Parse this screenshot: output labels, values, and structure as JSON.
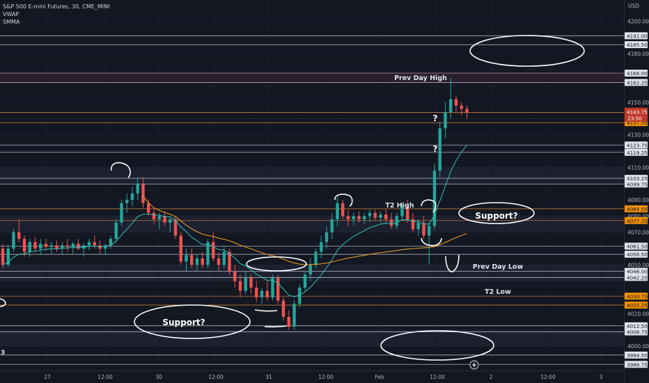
{
  "header": {
    "symbol_line": "S&P 500 E-mini Futures, 30, CME_MINI",
    "indicators": [
      "VWAP",
      "SMMA"
    ]
  },
  "colors": {
    "background": "#131722",
    "bull": "#26a69a",
    "bear": "#ef5350",
    "grid": "#1e2230",
    "band": "#1c2030",
    "level_white": "#c8ccd6",
    "level_orange": "#d9883a",
    "level_pink": "#e6a0c8",
    "vwap": "#f5a623",
    "smma": "#2ec4b6",
    "price_tag": "#c0392b",
    "orange_tag": "#f29100",
    "grey_tag": "#e0e3eb",
    "annotation": "#ffffff",
    "axis_text": "#b2b5be"
  },
  "chart_data": {
    "type": "candlestick",
    "currency": "USD",
    "ylim": [
      3985,
      4213
    ],
    "y_ticks": [
      4200.0,
      4190.0,
      4180.0,
      4170.0,
      4160.0,
      4150.0,
      4140.0,
      4130.0,
      4120.0,
      4110.0,
      4100.0,
      4090.0,
      4080.0,
      4070.0,
      4060.0,
      4050.0,
      4040.0,
      4030.0,
      4020.0,
      4010.0,
      4000.0
    ],
    "x_ticks": [
      "27",
      "12:00",
      "30",
      "12:00",
      "31",
      "12:00",
      "Feb",
      "12:00",
      "2",
      "12:00",
      "3"
    ],
    "levels": [
      {
        "price": 4191.0,
        "label": "4191.00",
        "color": "white"
      },
      {
        "price": 4185.5,
        "label": "4185.50",
        "color": "white"
      },
      {
        "price": 4168.0,
        "label": "4168.00",
        "color": "pink"
      },
      {
        "price": 4162.25,
        "label": "4162.25",
        "color": "white"
      },
      {
        "price": 4143.75,
        "label": "4143.75",
        "color": "orange"
      },
      {
        "price": 4137.5,
        "label": "4137.50",
        "color": "orange"
      },
      {
        "price": 4123.75,
        "label": "4123.75",
        "color": "white"
      },
      {
        "price": 4119.25,
        "label": "4119.25",
        "color": "white"
      },
      {
        "price": 4103.25,
        "label": "4103.25",
        "color": "white"
      },
      {
        "price": 4099.75,
        "label": "4099.75",
        "color": "white"
      },
      {
        "price": 4084.5,
        "label": "4084.50",
        "color": "orange"
      },
      {
        "price": 4077.25,
        "label": "4077.25",
        "color": "orange"
      },
      {
        "price": 4061.5,
        "label": "4061.50",
        "color": "white"
      },
      {
        "price": 4056.5,
        "label": "4056.50",
        "color": "white"
      },
      {
        "price": 4046.0,
        "label": "4046.00",
        "color": "white"
      },
      {
        "price": 4042.25,
        "label": "4042.25",
        "color": "white"
      },
      {
        "price": 4030.75,
        "label": "4030.75",
        "color": "orange"
      },
      {
        "price": 4025.25,
        "label": "4025.25",
        "color": "orange"
      },
      {
        "price": 4012.5,
        "label": "4012.50",
        "color": "white"
      },
      {
        "price": 4008.75,
        "label": "4008.75",
        "color": "white"
      },
      {
        "price": 3994.5,
        "label": "3994.50",
        "color": "white"
      },
      {
        "price": 3988.75,
        "label": "3988.75",
        "color": "white"
      }
    ],
    "last_price": {
      "price": 4143.75,
      "label": "4143.75",
      "countdown": "23:50"
    },
    "candles": [
      [
        4060,
        4063,
        4048,
        4050
      ],
      [
        4050,
        4062,
        4049,
        4060
      ],
      [
        4060,
        4072,
        4058,
        4070
      ],
      [
        4070,
        4078,
        4064,
        4066
      ],
      [
        4066,
        4068,
        4055,
        4058
      ],
      [
        4058,
        4066,
        4055,
        4064
      ],
      [
        4064,
        4067,
        4058,
        4060
      ],
      [
        4060,
        4066,
        4056,
        4063
      ],
      [
        4063,
        4066,
        4059,
        4061
      ],
      [
        4061,
        4064,
        4057,
        4062
      ],
      [
        4062,
        4065,
        4058,
        4060
      ],
      [
        4060,
        4064,
        4056,
        4062
      ],
      [
        4062,
        4066,
        4058,
        4061
      ],
      [
        4061,
        4064,
        4057,
        4063
      ],
      [
        4063,
        4066,
        4059,
        4060
      ],
      [
        4060,
        4063,
        4055,
        4062
      ],
      [
        4062,
        4066,
        4059,
        4064
      ],
      [
        4064,
        4068,
        4060,
        4062
      ],
      [
        4062,
        4065,
        4057,
        4060
      ],
      [
        4060,
        4063,
        4056,
        4062
      ],
      [
        4062,
        4068,
        4060,
        4066
      ],
      [
        4066,
        4078,
        4064,
        4076
      ],
      [
        4076,
        4090,
        4074,
        4088
      ],
      [
        4088,
        4094,
        4082,
        4090
      ],
      [
        4090,
        4098,
        4086,
        4094
      ],
      [
        4094,
        4104,
        4090,
        4100
      ],
      [
        4100,
        4104,
        4085,
        4088
      ],
      [
        4088,
        4090,
        4080,
        4082
      ],
      [
        4082,
        4085,
        4075,
        4078
      ],
      [
        4078,
        4082,
        4072,
        4080
      ],
      [
        4080,
        4083,
        4074,
        4076
      ],
      [
        4076,
        4079,
        4070,
        4078
      ],
      [
        4078,
        4080,
        4066,
        4068
      ],
      [
        4068,
        4070,
        4050,
        4052
      ],
      [
        4052,
        4060,
        4046,
        4056
      ],
      [
        4056,
        4060,
        4048,
        4050
      ],
      [
        4050,
        4056,
        4046,
        4054
      ],
      [
        4054,
        4058,
        4048,
        4050
      ],
      [
        4050,
        4066,
        4048,
        4064
      ],
      [
        4064,
        4070,
        4052,
        4054
      ],
      [
        4054,
        4058,
        4046,
        4050
      ],
      [
        4050,
        4062,
        4048,
        4058
      ],
      [
        4058,
        4060,
        4044,
        4046
      ],
      [
        4046,
        4050,
        4036,
        4040
      ],
      [
        4040,
        4044,
        4030,
        4034
      ],
      [
        4034,
        4046,
        4032,
        4042
      ],
      [
        4042,
        4044,
        4032,
        4036
      ],
      [
        4036,
        4040,
        4027,
        4030
      ],
      [
        4030,
        4036,
        4026,
        4034
      ],
      [
        4034,
        4040,
        4028,
        4030
      ],
      [
        4030,
        4044,
        4028,
        4042
      ],
      [
        4042,
        4044,
        4026,
        4028
      ],
      [
        4028,
        4030,
        4016,
        4018
      ],
      [
        4018,
        4022,
        4010,
        4012
      ],
      [
        4012,
        4028,
        4010,
        4026
      ],
      [
        4026,
        4038,
        4024,
        4036
      ],
      [
        4036,
        4046,
        4034,
        4044
      ],
      [
        4044,
        4054,
        4040,
        4050
      ],
      [
        4050,
        4060,
        4048,
        4058
      ],
      [
        4058,
        4068,
        4054,
        4064
      ],
      [
        4064,
        4074,
        4060,
        4070
      ],
      [
        4070,
        4082,
        4066,
        4078
      ],
      [
        4078,
        4092,
        4074,
        4088
      ],
      [
        4088,
        4090,
        4078,
        4080
      ],
      [
        4080,
        4084,
        4074,
        4078
      ],
      [
        4078,
        4082,
        4074,
        4080
      ],
      [
        4080,
        4083,
        4076,
        4078
      ],
      [
        4078,
        4082,
        4075,
        4080
      ],
      [
        4080,
        4084,
        4076,
        4082
      ],
      [
        4082,
        4084,
        4077,
        4079
      ],
      [
        4079,
        4083,
        4076,
        4081
      ],
      [
        4081,
        4084,
        4076,
        4078
      ],
      [
        4078,
        4082,
        4072,
        4074
      ],
      [
        4074,
        4082,
        4072,
        4080
      ],
      [
        4080,
        4088,
        4078,
        4086
      ],
      [
        4086,
        4090,
        4076,
        4078
      ],
      [
        4078,
        4082,
        4070,
        4072
      ],
      [
        4072,
        4078,
        4068,
        4076
      ],
      [
        4076,
        4080,
        4066,
        4068
      ],
      [
        4068,
        4076,
        4050,
        4074
      ],
      [
        4074,
        4112,
        4072,
        4108
      ],
      [
        4108,
        4138,
        4104,
        4134
      ],
      [
        4134,
        4150,
        4128,
        4144
      ],
      [
        4144,
        4165,
        4140,
        4152
      ],
      [
        4152,
        4154,
        4144,
        4148
      ],
      [
        4148,
        4150,
        4142,
        4146
      ],
      [
        4146,
        4148,
        4140,
        4143.75
      ]
    ],
    "vwap_first_candle": 26,
    "smma_period": 6,
    "annotations": [
      "Prev Day High",
      "T2 High",
      "Prev Day Low",
      "T2 Low",
      "Support?",
      "Support?",
      "?",
      "?"
    ],
    "marker_label": "3"
  },
  "axis": {
    "currency": "USD"
  }
}
